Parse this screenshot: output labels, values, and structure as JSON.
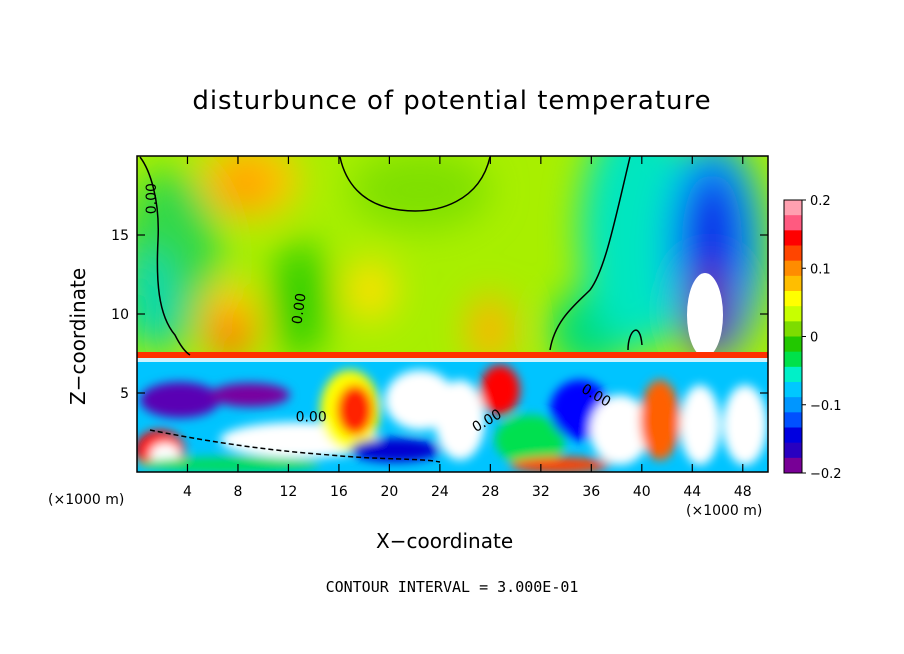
{
  "chart_data": {
    "type": "heatmap",
    "title": "disturbunce of potential temperature",
    "xlabel": "X−coordinate",
    "ylabel": "Z−coordinate",
    "x_unit_label": "(×1000 m)",
    "x_unit_label_right": "(×1000 m)",
    "footer": "CONTOUR INTERVAL = 3.000E-01",
    "xlim": [
      0,
      50
    ],
    "ylim": [
      0,
      20
    ],
    "x_ticks": [
      4,
      8,
      12,
      16,
      20,
      24,
      28,
      32,
      36,
      40,
      44,
      48
    ],
    "x_tick_labels": [
      "4",
      "8",
      "12",
      "16",
      "20",
      "24",
      "28",
      "32",
      "36",
      "40",
      "44",
      "48"
    ],
    "y_ticks": [
      5,
      10,
      15
    ],
    "y_tick_labels": [
      "5",
      "10",
      "15"
    ],
    "colorbar": {
      "range": [
        -0.2,
        0.2
      ],
      "tick_values": [
        0.2,
        0.1,
        0,
        -0.1,
        -0.2
      ],
      "tick_labels": [
        "0.2",
        "0.1",
        "0",
        "−0.1",
        "−0.2"
      ],
      "colors": [
        "#ffa0b0",
        "#ff5a80",
        "#ff0000",
        "#ff4500",
        "#ff8c00",
        "#ffbe00",
        "#ffff00",
        "#c8ff00",
        "#7ddc00",
        "#22c800",
        "#00e14a",
        "#00f0c8",
        "#00c8ff",
        "#0096ff",
        "#0050ff",
        "#0000e0",
        "#2800c0",
        "#780096"
      ]
    },
    "contour_labels": [
      {
        "text": "0.00",
        "x": 1.5,
        "y": 17.3,
        "angle": -90
      },
      {
        "text": "0.00",
        "x": 13.2,
        "y": 10.3,
        "angle": -82
      },
      {
        "text": "0.00",
        "x": 13.8,
        "y": 3.2,
        "angle": 0
      },
      {
        "text": "0.00",
        "x": 27.9,
        "y": 3.0,
        "angle": -30
      },
      {
        "text": "0.00",
        "x": 36.2,
        "y": 4.6,
        "angle": 30
      }
    ],
    "regions": [
      {
        "desc": "upper layer background",
        "value": 0.02
      },
      {
        "desc": "warm anomaly upper left",
        "x": [
          6,
          12
        ],
        "z": [
          15,
          20
        ],
        "value": 0.11
      },
      {
        "desc": "warm anomalies above inversion",
        "x": [
          5,
          10
        ],
        "z": [
          7.5,
          12
        ],
        "value": 0.14
      },
      {
        "desc": "cold anomaly upper right",
        "x": [
          42,
          50
        ],
        "z": [
          8,
          19
        ],
        "value": -0.19
      },
      {
        "desc": "turbulent boundary layer",
        "z": [
          0,
          7.3
        ],
        "value_range": [
          -0.2,
          0.2
        ]
      }
    ]
  }
}
